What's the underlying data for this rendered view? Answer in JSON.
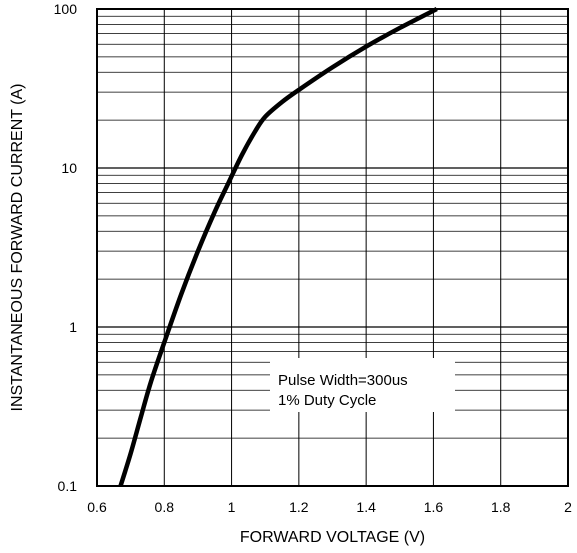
{
  "chart_data": {
    "type": "line",
    "title": "",
    "xlabel": "FORWARD VOLTAGE (V)",
    "ylabel": "INSTANTANEOUS FORWARD CURRENT (A)",
    "xlim": [
      0.6,
      2.0
    ],
    "ylim": [
      0.1,
      100
    ],
    "yscale": "log",
    "grid": true,
    "x_ticks": [
      "0.6",
      "0.8",
      "1",
      "1.2",
      "1.4",
      "1.6",
      "1.8",
      "2"
    ],
    "x_tick_values": [
      0.6,
      0.8,
      1.0,
      1.2,
      1.4,
      1.6,
      1.8,
      2.0
    ],
    "y_ticks": [
      "0.1",
      "1",
      "10",
      "100"
    ],
    "y_tick_values": [
      0.1,
      1,
      10,
      100
    ],
    "annotations": [
      "Pulse Width=300us",
      "1% Duty Cycle"
    ],
    "series": [
      {
        "x": [
          0.67,
          0.7,
          0.73,
          0.76,
          0.8,
          0.85,
          0.9,
          0.95,
          0.99,
          1.03,
          1.07,
          1.1,
          1.15,
          1.2,
          1.3,
          1.4,
          1.5,
          1.61
        ],
        "y": [
          0.1,
          0.16,
          0.27,
          0.45,
          0.8,
          1.6,
          3.0,
          5.3,
          8.0,
          12,
          17,
          21,
          26,
          31,
          43,
          58,
          76,
          100
        ]
      }
    ]
  },
  "colors": {
    "curve": "#000000",
    "grid": "#000000",
    "background": "#ffffff"
  }
}
